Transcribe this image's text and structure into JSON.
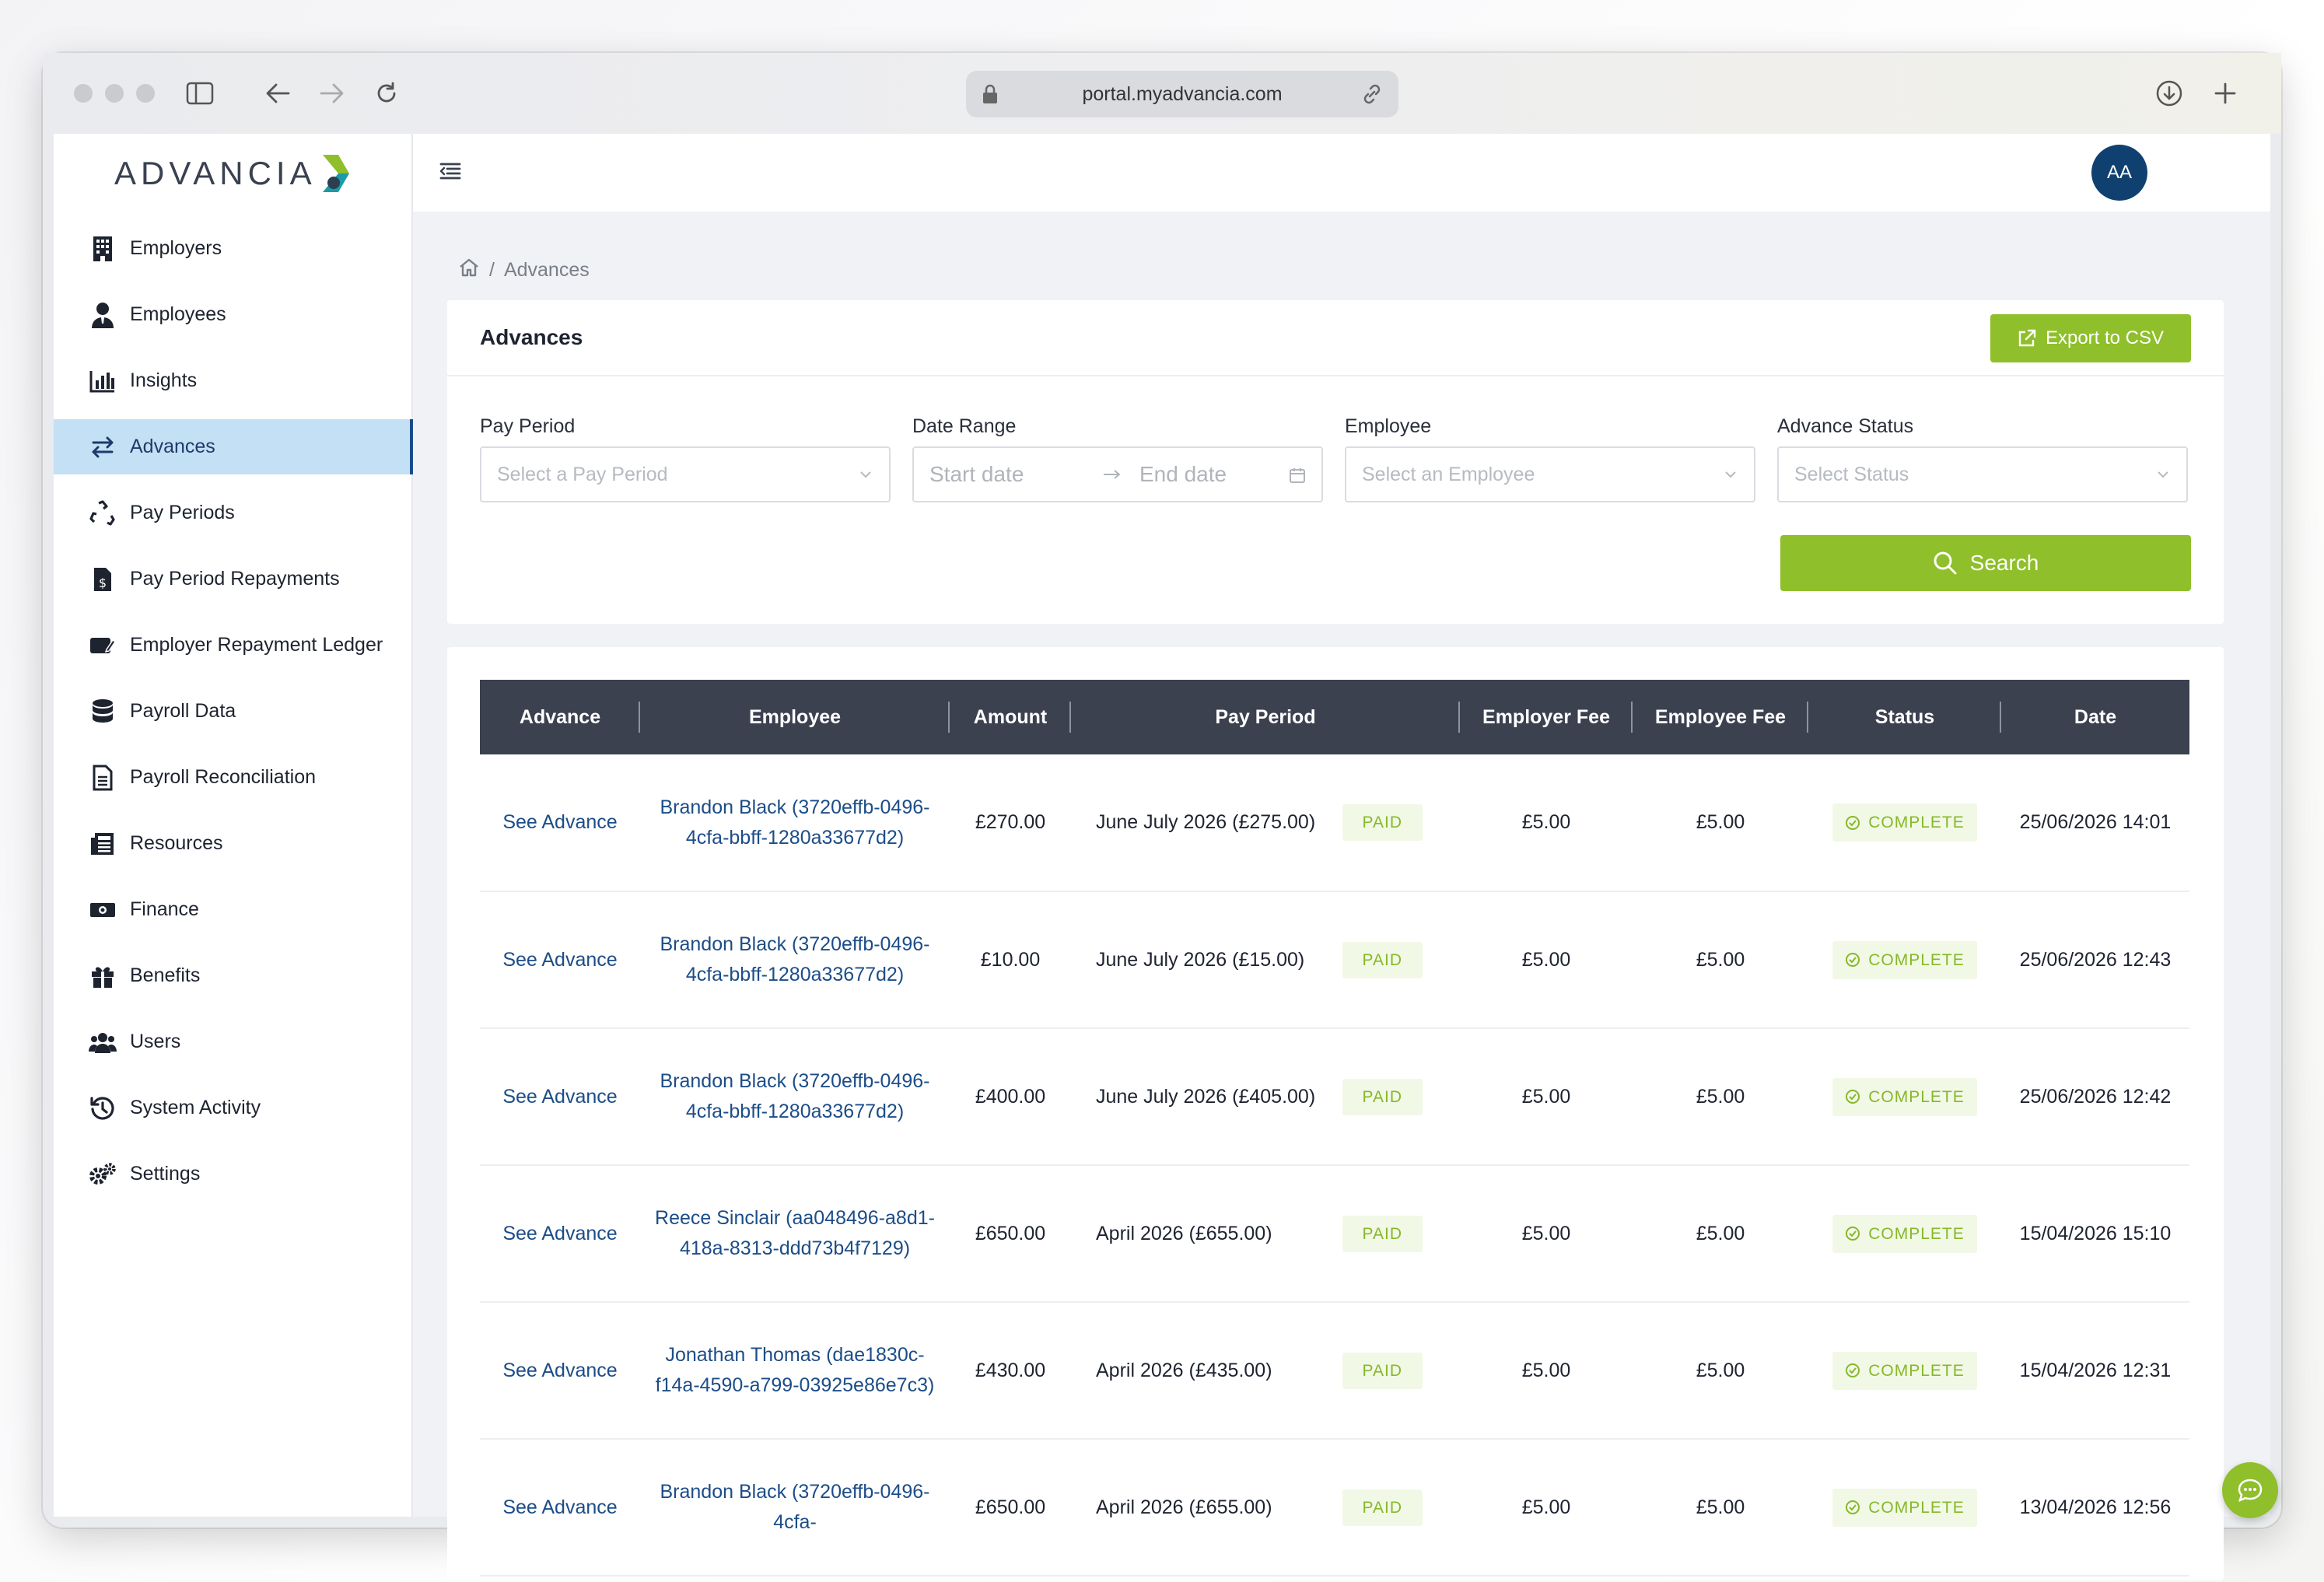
{
  "browser": {
    "url": "portal.myadvancia.com"
  },
  "brand": {
    "logo_text": "ADVANCIA",
    "accent": "#8fbf2a",
    "primary": "#10406f"
  },
  "sidebar": {
    "items": [
      {
        "label": "Employers",
        "icon": "building-icon"
      },
      {
        "label": "Employees",
        "icon": "user-tie-icon"
      },
      {
        "label": "Insights",
        "icon": "bar-chart-icon"
      },
      {
        "label": "Advances",
        "icon": "transfer-arrows-icon",
        "active": true
      },
      {
        "label": "Pay Periods",
        "icon": "recycle-icon"
      },
      {
        "label": "Pay Period Repayments",
        "icon": "invoice-dollar-icon"
      },
      {
        "label": "Employer Repayment Ledger",
        "icon": "money-check-icon"
      },
      {
        "label": "Payroll Data",
        "icon": "database-icon"
      },
      {
        "label": "Payroll Reconciliation",
        "icon": "file-lines-icon"
      },
      {
        "label": "Resources",
        "icon": "newspaper-icon"
      },
      {
        "label": "Finance",
        "icon": "money-bill-icon"
      },
      {
        "label": "Benefits",
        "icon": "gift-icon"
      },
      {
        "label": "Users",
        "icon": "users-icon"
      },
      {
        "label": "System Activity",
        "icon": "history-icon"
      },
      {
        "label": "Settings",
        "icon": "gears-icon"
      }
    ]
  },
  "header": {
    "avatar_initials": "AA"
  },
  "breadcrumb": {
    "current": "Advances"
  },
  "filters_card": {
    "title": "Advances",
    "export_label": "Export to CSV",
    "pay_period": {
      "label": "Pay Period",
      "placeholder": "Select a Pay Period"
    },
    "date_range": {
      "label": "Date Range",
      "start_placeholder": "Start date",
      "end_placeholder": "End date"
    },
    "employee": {
      "label": "Employee",
      "placeholder": "Select an Employee"
    },
    "status": {
      "label": "Advance Status",
      "placeholder": "Select Status"
    },
    "search_label": "Search"
  },
  "table": {
    "columns": [
      "Advance",
      "Employee",
      "Amount",
      "Pay Period",
      "Employer Fee",
      "Employee Fee",
      "Status",
      "Date"
    ],
    "rows": [
      {
        "advance": "See Advance",
        "employee": "Brandon Black (3720effb-0496-4cfa-bbff-1280a33677d2)",
        "amount": "£270.00",
        "pay_period": "June July 2026 (£275.00)",
        "pp_status": "PAID",
        "employer_fee": "£5.00",
        "employee_fee": "£5.00",
        "status": "COMPLETE",
        "date": "25/06/2026 14:01"
      },
      {
        "advance": "See Advance",
        "employee": "Brandon Black (3720effb-0496-4cfa-bbff-1280a33677d2)",
        "amount": "£10.00",
        "pay_period": "June July 2026 (£15.00)",
        "pp_status": "PAID",
        "employer_fee": "£5.00",
        "employee_fee": "£5.00",
        "status": "COMPLETE",
        "date": "25/06/2026 12:43"
      },
      {
        "advance": "See Advance",
        "employee": "Brandon Black (3720effb-0496-4cfa-bbff-1280a33677d2)",
        "amount": "£400.00",
        "pay_period": "June July 2026 (£405.00)",
        "pp_status": "PAID",
        "employer_fee": "£5.00",
        "employee_fee": "£5.00",
        "status": "COMPLETE",
        "date": "25/06/2026 12:42"
      },
      {
        "advance": "See Advance",
        "employee": "Reece Sinclair (aa048496-a8d1-418a-8313-ddd73b4f7129)",
        "amount": "£650.00",
        "pay_period": "April 2026 (£655.00)",
        "pp_status": "PAID",
        "employer_fee": "£5.00",
        "employee_fee": "£5.00",
        "status": "COMPLETE",
        "date": "15/04/2026 15:10"
      },
      {
        "advance": "See Advance",
        "employee": "Jonathan Thomas (dae1830c-f14a-4590-a799-03925e86e7c3)",
        "amount": "£430.00",
        "pay_period": "April 2026 (£435.00)",
        "pp_status": "PAID",
        "employer_fee": "£5.00",
        "employee_fee": "£5.00",
        "status": "COMPLETE",
        "date": "15/04/2026 12:31"
      },
      {
        "advance": "See Advance",
        "employee": "Brandon Black (3720effb-0496-4cfa-",
        "amount": "£650.00",
        "pay_period": "April 2026 (£655.00)",
        "pp_status": "PAID",
        "employer_fee": "£5.00",
        "employee_fee": "£5.00",
        "status": "COMPLETE",
        "date": "13/04/2026 12:56"
      }
    ]
  }
}
